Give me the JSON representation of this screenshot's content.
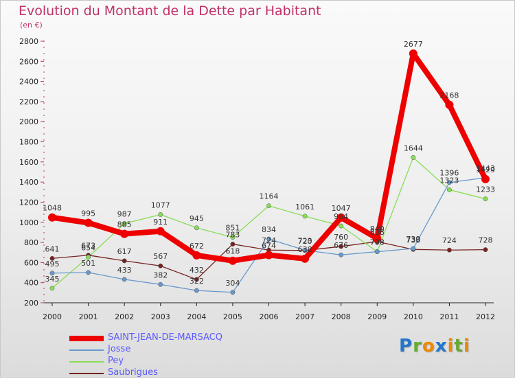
{
  "chart_data": {
    "type": "line",
    "title": "Evolution du Montant de la Dette par Habitant",
    "subtitle": "(en €)",
    "xlabel": "",
    "ylabel": "",
    "x": [
      "2000",
      "2001",
      "2002",
      "2003",
      "2004",
      "2005",
      "2006",
      "2007",
      "2008",
      "2009",
      "2010",
      "2011",
      "2012"
    ],
    "ylim": [
      200,
      2800
    ],
    "yticks": [
      200,
      400,
      600,
      800,
      1000,
      1200,
      1400,
      1600,
      1800,
      2000,
      2200,
      2400,
      2600,
      2800
    ],
    "series": [
      {
        "name": "SAINT-JEAN-DE-MARSACQ",
        "color": "#ee0000",
        "values": [
          1048,
          995,
          885,
          911,
          672,
          618,
          674,
          638,
          1047,
          840,
          2677,
          2168,
          1429
        ]
      },
      {
        "name": "Josse",
        "color": "#6699cc",
        "values": [
          495,
          501,
          433,
          382,
          322,
          304,
          834,
          723,
          676,
          708,
          739,
          1396,
          1443
        ]
      },
      {
        "name": "Pey",
        "color": "#88dd55",
        "values": [
          345,
          654,
          987,
          1077,
          945,
          851,
          1164,
          1061,
          964,
          708,
          1644,
          1323,
          1233
        ]
      },
      {
        "name": "Saubrigues",
        "color": "#772222",
        "values": [
          641,
          673,
          617,
          567,
          432,
          783,
          724,
          720,
          760,
          808,
          730,
          724,
          728
        ]
      }
    ]
  },
  "logo": {
    "letters": [
      "P",
      "r",
      "o",
      "x",
      "i",
      "t",
      "i"
    ],
    "colors": [
      "#2277cc",
      "#66aa33",
      "#ee8800",
      "#2277cc",
      "#ee8800",
      "#66aa33",
      "#ee8800"
    ]
  }
}
